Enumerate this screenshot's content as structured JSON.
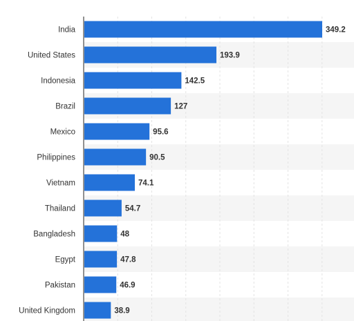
{
  "chart_data": {
    "type": "bar",
    "orientation": "horizontal",
    "categories": [
      "India",
      "United States",
      "Indonesia",
      "Brazil",
      "Mexico",
      "Philippines",
      "Vietnam",
      "Thailand",
      "Bangladesh",
      "Egypt",
      "Pakistan",
      "United Kingdom"
    ],
    "values": [
      349.2,
      193.9,
      142.5,
      127,
      95.6,
      90.5,
      74.1,
      54.7,
      48,
      47.8,
      46.9,
      38.9
    ],
    "value_labels": [
      "349.2",
      "193.9",
      "142.5",
      "127",
      "95.6",
      "90.5",
      "74.1",
      "54.7",
      "48",
      "47.8",
      "46.9",
      "38.9"
    ],
    "xlim": [
      0,
      400
    ],
    "grid": "vertical dashed, alternating row shading",
    "colors": {
      "bar": "#2472d9",
      "row_shade": "#f5f5f5",
      "grid": "#e3e3e3",
      "axis": "#222222"
    }
  }
}
